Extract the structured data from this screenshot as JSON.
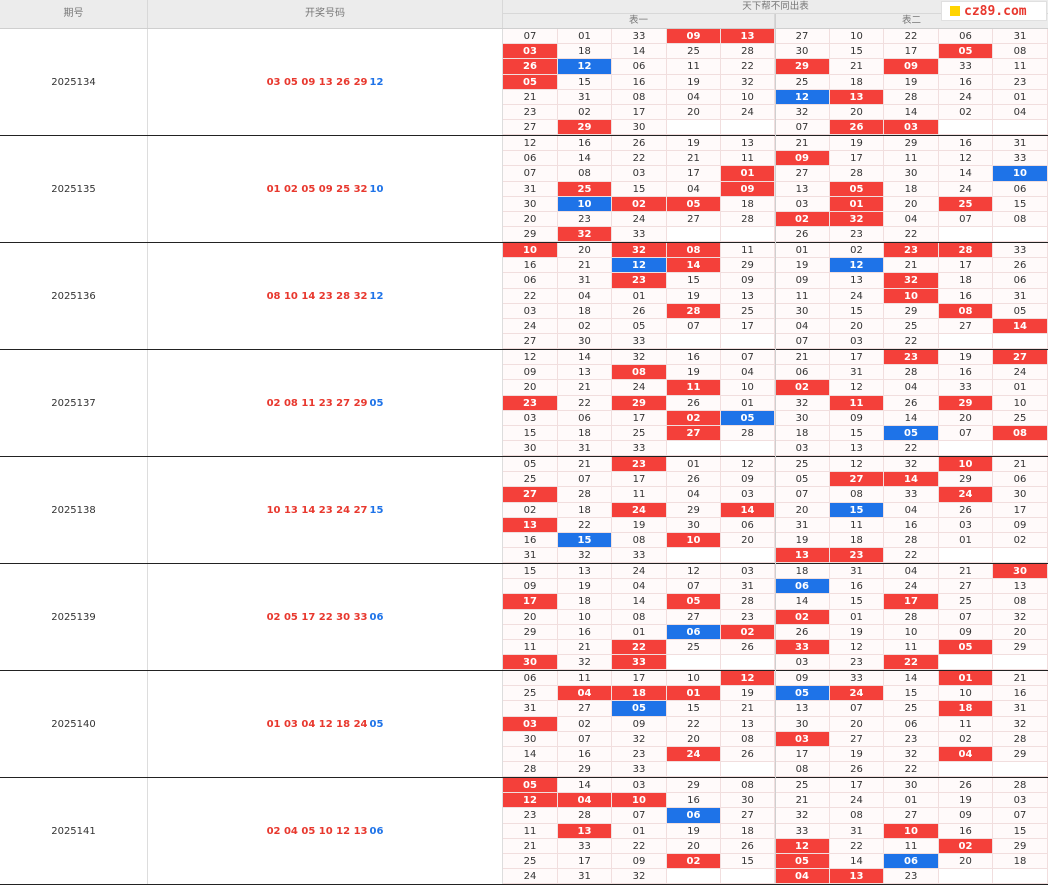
{
  "header": {
    "period": "期号",
    "draw": "开奖号码",
    "group": "天下帮不同出表",
    "table1": "表一",
    "table2": "表二"
  },
  "logo": "cz89.com",
  "records": [
    {
      "period": "2025134",
      "red": "03 05 09 13 26 29",
      "blue": "12",
      "t1": [
        "07",
        "01",
        "33",
        "09",
        "13",
        "03",
        "18",
        "14",
        "25",
        "28",
        "26",
        "12",
        "06",
        "11",
        "22",
        "05",
        "15",
        "16",
        "19",
        "32",
        "21",
        "31",
        "08",
        "04",
        "10",
        "23",
        "02",
        "17",
        "20",
        "24",
        "27",
        "29",
        "30",
        "",
        ""
      ],
      "t2": [
        "27",
        "10",
        "22",
        "06",
        "31",
        "30",
        "15",
        "17",
        "05",
        "08",
        "29",
        "21",
        "09",
        "33",
        "11",
        "25",
        "18",
        "19",
        "16",
        "23",
        "12",
        "13",
        "28",
        "24",
        "01",
        "32",
        "20",
        "14",
        "02",
        "04",
        "07",
        "26",
        "03",
        "",
        ""
      ],
      "t1m": "...rr.r.....b.......................................",
      "t2m": "........r...r.r.....br.............r.r.."
    },
    {
      "period": "2025135",
      "red": "01 02 05 09 25 32",
      "blue": "10",
      "t1": [
        "12",
        "16",
        "26",
        "19",
        "13",
        "06",
        "14",
        "22",
        "21",
        "11",
        "07",
        "08",
        "03",
        "17",
        "01",
        "31",
        "25",
        "15",
        "04",
        "09",
        "30",
        "10",
        "02",
        "05",
        "18",
        "20",
        "23",
        "24",
        "27",
        "28",
        "29",
        "32",
        "33",
        "",
        ""
      ],
      "t2": [
        "21",
        "19",
        "29",
        "16",
        "31",
        "09",
        "17",
        "11",
        "12",
        "33",
        "27",
        "28",
        "30",
        "14",
        "10",
        "13",
        "05",
        "18",
        "24",
        "06",
        "03",
        "01",
        "20",
        "25",
        "15",
        "02",
        "32",
        "04",
        "07",
        "08",
        "26",
        "23",
        "22",
        "",
        ""
      ]
    },
    {
      "period": "2025136",
      "red": "08 10 14 23 28 32",
      "blue": "12",
      "t1": [
        "10",
        "20",
        "32",
        "08",
        "11",
        "16",
        "21",
        "12",
        "14",
        "29",
        "06",
        "31",
        "23",
        "15",
        "09",
        "22",
        "04",
        "01",
        "19",
        "13",
        "03",
        "18",
        "26",
        "28",
        "25",
        "24",
        "02",
        "05",
        "07",
        "17",
        "27",
        "30",
        "33",
        "",
        ""
      ],
      "t2": [
        "01",
        "02",
        "23",
        "28",
        "33",
        "19",
        "12",
        "21",
        "17",
        "26",
        "09",
        "13",
        "32",
        "18",
        "06",
        "11",
        "24",
        "10",
        "16",
        "31",
        "30",
        "15",
        "29",
        "08",
        "05",
        "04",
        "20",
        "25",
        "27",
        "14",
        "07",
        "03",
        "22",
        "",
        ""
      ]
    },
    {
      "period": "2025137",
      "red": "02 08 11 23 27 29",
      "blue": "05",
      "t1": [
        "12",
        "14",
        "32",
        "16",
        "07",
        "09",
        "13",
        "08",
        "19",
        "04",
        "20",
        "21",
        "24",
        "11",
        "10",
        "23",
        "22",
        "29",
        "26",
        "01",
        "03",
        "06",
        "17",
        "02",
        "05",
        "15",
        "18",
        "25",
        "27",
        "28",
        "30",
        "31",
        "33",
        "",
        ""
      ],
      "t2": [
        "21",
        "17",
        "23",
        "19",
        "27",
        "06",
        "31",
        "28",
        "16",
        "24",
        "02",
        "12",
        "04",
        "33",
        "01",
        "32",
        "11",
        "26",
        "29",
        "10",
        "30",
        "09",
        "14",
        "20",
        "25",
        "18",
        "15",
        "05",
        "07",
        "08",
        "03",
        "13",
        "22",
        "",
        ""
      ]
    },
    {
      "period": "2025138",
      "red": "10 13 14 23 24 27",
      "blue": "15",
      "t1": [
        "05",
        "21",
        "23",
        "01",
        "12",
        "25",
        "07",
        "17",
        "26",
        "09",
        "27",
        "28",
        "11",
        "04",
        "03",
        "02",
        "18",
        "24",
        "29",
        "14",
        "13",
        "22",
        "19",
        "30",
        "06",
        "16",
        "15",
        "08",
        "10",
        "20",
        "31",
        "32",
        "33",
        "",
        ""
      ],
      "t2": [
        "25",
        "12",
        "32",
        "10",
        "21",
        "05",
        "27",
        "14",
        "29",
        "06",
        "07",
        "08",
        "33",
        "24",
        "30",
        "20",
        "15",
        "04",
        "26",
        "17",
        "31",
        "11",
        "16",
        "03",
        "09",
        "19",
        "18",
        "28",
        "01",
        "02",
        "13",
        "23",
        "22",
        "",
        ""
      ]
    },
    {
      "period": "2025139",
      "red": "02 05 17 22 30 33",
      "blue": "06",
      "t1": [
        "15",
        "13",
        "24",
        "12",
        "03",
        "09",
        "19",
        "04",
        "07",
        "31",
        "17",
        "18",
        "14",
        "05",
        "28",
        "20",
        "10",
        "08",
        "27",
        "23",
        "29",
        "16",
        "01",
        "06",
        "02",
        "11",
        "21",
        "22",
        "25",
        "26",
        "30",
        "32",
        "33",
        "",
        ""
      ],
      "t2": [
        "18",
        "31",
        "04",
        "21",
        "30",
        "06",
        "16",
        "24",
        "27",
        "13",
        "14",
        "15",
        "17",
        "25",
        "08",
        "02",
        "01",
        "28",
        "07",
        "32",
        "26",
        "19",
        "10",
        "09",
        "20",
        "33",
        "12",
        "11",
        "05",
        "29",
        "03",
        "23",
        "22",
        "",
        ""
      ]
    },
    {
      "period": "2025140",
      "red": "01 03 04 12 18 24",
      "blue": "05",
      "t1": [
        "06",
        "11",
        "17",
        "10",
        "12",
        "25",
        "04",
        "18",
        "01",
        "19",
        "31",
        "27",
        "05",
        "15",
        "21",
        "03",
        "02",
        "09",
        "22",
        "13",
        "30",
        "07",
        "32",
        "20",
        "08",
        "14",
        "16",
        "23",
        "24",
        "26",
        "28",
        "29",
        "33",
        "",
        ""
      ],
      "t2": [
        "09",
        "33",
        "14",
        "01",
        "21",
        "05",
        "24",
        "15",
        "10",
        "16",
        "13",
        "07",
        "25",
        "18",
        "31",
        "30",
        "20",
        "06",
        "11",
        "32",
        "03",
        "27",
        "23",
        "02",
        "28",
        "17",
        "19",
        "32",
        "04",
        "29",
        "08",
        "26",
        "22",
        "",
        ""
      ]
    },
    {
      "period": "2025141",
      "red": "02 04 05 10 12 13",
      "blue": "06",
      "t1": [
        "05",
        "14",
        "03",
        "29",
        "08",
        "12",
        "04",
        "10",
        "16",
        "30",
        "23",
        "28",
        "07",
        "06",
        "27",
        "11",
        "13",
        "01",
        "19",
        "18",
        "21",
        "33",
        "22",
        "20",
        "26",
        "25",
        "17",
        "09",
        "02",
        "15",
        "24",
        "31",
        "32",
        "",
        ""
      ],
      "t2": [
        "25",
        "17",
        "30",
        "26",
        "28",
        "21",
        "24",
        "01",
        "19",
        "03",
        "32",
        "08",
        "27",
        "09",
        "07",
        "33",
        "31",
        "10",
        "16",
        "15",
        "12",
        "22",
        "11",
        "02",
        "29",
        "05",
        "14",
        "06",
        "20",
        "18",
        "04",
        "13",
        "23",
        "",
        ""
      ]
    }
  ]
}
